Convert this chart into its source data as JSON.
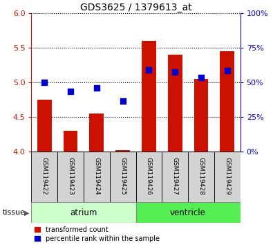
{
  "title": "GDS3625 / 1379613_at",
  "samples": [
    "GSM119422",
    "GSM119423",
    "GSM119424",
    "GSM119425",
    "GSM119426",
    "GSM119427",
    "GSM119428",
    "GSM119429"
  ],
  "red_values": [
    4.75,
    4.3,
    4.55,
    4.02,
    5.6,
    5.4,
    5.05,
    5.45
  ],
  "blue_values": [
    5.0,
    4.87,
    4.92,
    4.73,
    5.18,
    5.15,
    5.07,
    5.17
  ],
  "red_base": 4.0,
  "ylim_left": [
    4.0,
    6.0
  ],
  "ylim_right": [
    0,
    100
  ],
  "yticks_left": [
    4.0,
    4.5,
    5.0,
    5.5,
    6.0
  ],
  "yticks_right": [
    0,
    25,
    50,
    75,
    100
  ],
  "ytick_labels_right": [
    "0%",
    "25%",
    "50%",
    "75%",
    "100%"
  ],
  "atrium_color": "#ccffcc",
  "ventricle_color": "#55ee55",
  "bar_color": "#cc1100",
  "dot_color": "#0000cc",
  "bar_width": 0.55,
  "dot_size": 35,
  "dot_marker": "s",
  "bg_color": "#ffffff",
  "legend_red": "transformed count",
  "legend_blue": "percentile rank within the sample",
  "tissue_label": "tissue",
  "left_tick_color": "#cc1100",
  "right_axis_color": "#0000cc",
  "title_fontsize": 10,
  "tick_fontsize": 8
}
